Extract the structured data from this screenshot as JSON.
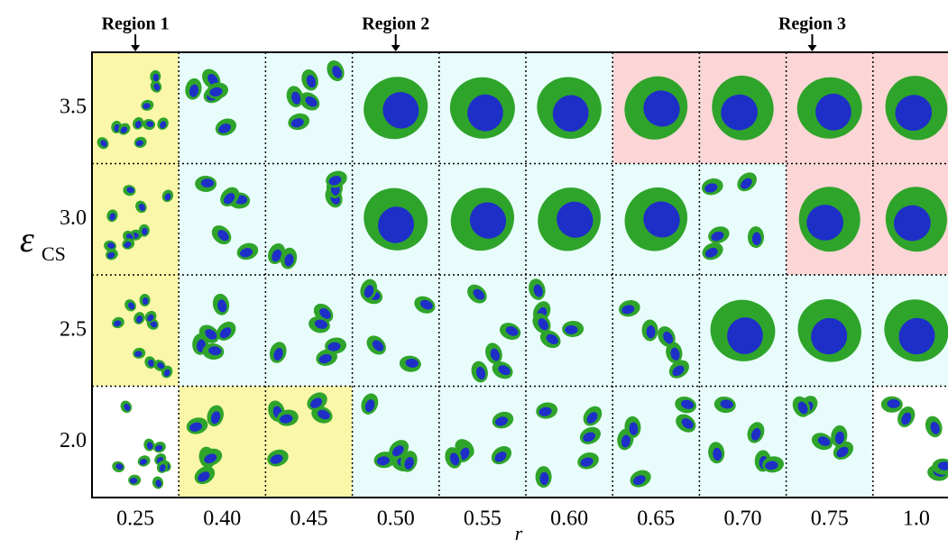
{
  "regions": [
    {
      "label": "Region 1",
      "column": 0
    },
    {
      "label": "Region 2",
      "column": 3
    },
    {
      "label": "Region 3",
      "column": 7.8
    }
  ],
  "x_axis": {
    "label": "r",
    "ticks": [
      "0.25",
      "0.40",
      "0.45",
      "0.50",
      "0.55",
      "0.60",
      "0.65",
      "0.70",
      "0.75",
      "1.0"
    ]
  },
  "y_axis": {
    "symbol": "ε",
    "subscript": "CS",
    "ticks": [
      "3.5",
      "3.0",
      "2.5",
      "2.0"
    ]
  },
  "cells": [
    [
      1,
      2,
      2,
      2,
      2,
      2,
      3,
      3,
      3,
      3
    ],
    [
      1,
      2,
      2,
      2,
      2,
      2,
      2,
      2,
      3,
      3
    ],
    [
      1,
      2,
      2,
      2,
      2,
      2,
      2,
      2,
      2,
      2
    ],
    [
      0,
      1,
      1,
      2,
      2,
      2,
      2,
      2,
      2,
      0
    ]
  ],
  "colors": [
    "#ffffff",
    "#fbf7a8",
    "#e8fcfc",
    "#fcd6d6"
  ]
}
